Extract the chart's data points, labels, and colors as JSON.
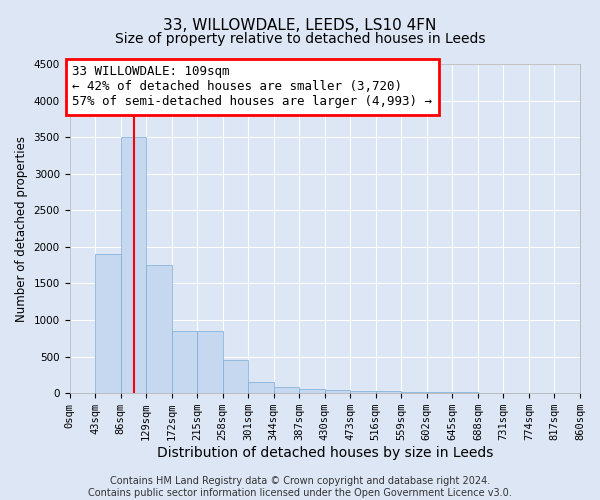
{
  "title": "33, WILLOWDALE, LEEDS, LS10 4FN",
  "subtitle": "Size of property relative to detached houses in Leeds",
  "xlabel": "Distribution of detached houses by size in Leeds",
  "ylabel": "Number of detached properties",
  "bar_color": "#c5d8f0",
  "bar_edge_color": "#7badd4",
  "background_color": "#dce6f5",
  "grid_color": "#ffffff",
  "red_line_x": 109,
  "annotation_line1": "33 WILLOWDALE: 109sqm",
  "annotation_line2": "← 42% of detached houses are smaller (3,720)",
  "annotation_line3": "57% of semi-detached houses are larger (4,993) →",
  "ylim": [
    0,
    4500
  ],
  "yticks": [
    0,
    500,
    1000,
    1500,
    2000,
    2500,
    3000,
    3500,
    4000,
    4500
  ],
  "bin_edges": [
    0,
    43,
    86,
    129,
    172,
    215,
    258,
    301,
    344,
    387,
    430,
    473,
    516,
    559,
    602,
    645,
    688,
    731,
    774,
    817,
    860
  ],
  "bar_heights": [
    5,
    1900,
    3500,
    1750,
    850,
    850,
    450,
    160,
    90,
    60,
    40,
    30,
    25,
    20,
    15,
    10,
    8,
    5,
    5,
    3
  ],
  "footer_text": "Contains HM Land Registry data © Crown copyright and database right 2024.\nContains public sector information licensed under the Open Government Licence v3.0.",
  "title_fontsize": 11,
  "subtitle_fontsize": 10,
  "xlabel_fontsize": 10,
  "ylabel_fontsize": 8.5,
  "tick_fontsize": 7.5,
  "annotation_fontsize": 9,
  "footer_fontsize": 7
}
